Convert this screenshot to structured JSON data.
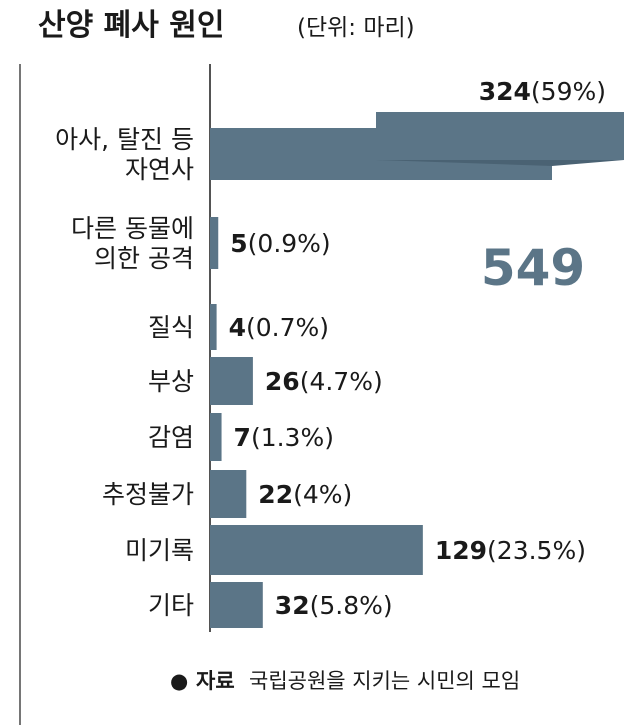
{
  "header": {
    "title": "산양 폐사 원인",
    "unit": "(단위: 마리)"
  },
  "total": "549",
  "source": {
    "bullet": "●",
    "label": "자료",
    "text": "국립공원을 지키는 시민의 모임"
  },
  "colors": {
    "bar": "#5b7587",
    "bar_dark": "#4a6273",
    "axis": "#1a1a1a"
  },
  "chart_data": {
    "type": "bar",
    "orientation": "horizontal",
    "title": "산양 폐사 원인",
    "unit": "(단위: 마리)",
    "categories": [
      [
        "아사, 탈진 등",
        "자연사"
      ],
      [
        "다른 동물에",
        "의한 공격"
      ],
      [
        "질식"
      ],
      [
        "부상"
      ],
      [
        "감염"
      ],
      [
        "추정불가"
      ],
      [
        "미기록"
      ],
      [
        "기타"
      ]
    ],
    "values": [
      324,
      5,
      4,
      26,
      7,
      22,
      129,
      32
    ],
    "percent_labels": [
      "(59%)",
      "(0.9%)",
      "(0.7%)",
      "(4.7%)",
      "(1.3%)",
      "(4%)",
      "(23.5%)",
      "(5.8%)"
    ],
    "total": 549,
    "notes": "The 324 bar is drawn with a break (folded) because it exceeds the visible scale."
  }
}
